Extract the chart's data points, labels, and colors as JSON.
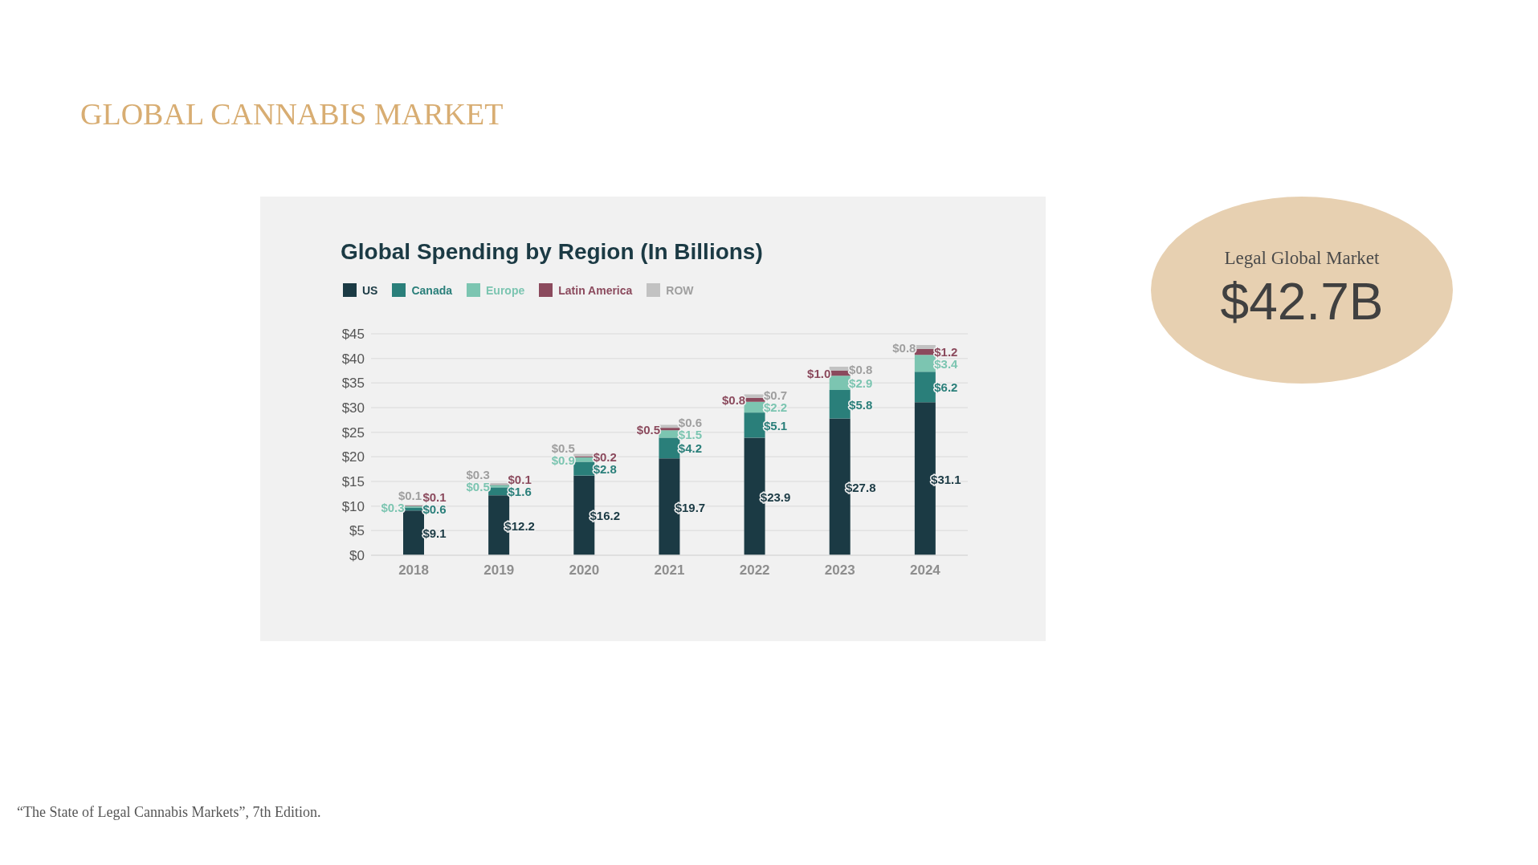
{
  "chart_data": {
    "type": "bar",
    "title": "GLOBAL CANNABIS MARKET",
    "subtitle": "Global Spending by Region (In Billions)",
    "categories": [
      "2018",
      "2019",
      "2020",
      "2021",
      "2022",
      "2023",
      "2024"
    ],
    "stacked": true,
    "series": [
      {
        "name": "US",
        "color": "#1b3a44",
        "values": [
          9.1,
          12.2,
          16.2,
          19.7,
          23.9,
          27.8,
          31.1
        ],
        "value_labels": [
          "$9.1",
          "$12.2",
          "$16.2",
          "$19.7",
          "$23.9",
          "$27.8",
          "$31.1"
        ]
      },
      {
        "name": "Canada",
        "color": "#2a7f7a",
        "values": [
          0.6,
          1.6,
          2.8,
          4.2,
          5.1,
          5.8,
          6.2
        ],
        "value_labels": [
          "$0.6",
          "$1.6",
          "$2.8",
          "$4.2",
          "$5.1",
          "$5.8",
          "$6.2"
        ]
      },
      {
        "name": "Europe",
        "color": "#7cc5b1",
        "values": [
          0.3,
          0.5,
          0.9,
          1.5,
          2.2,
          2.9,
          3.4
        ],
        "value_labels": [
          "$0.3",
          "$0.5",
          "$0.9",
          "$1.5",
          "$2.2",
          "$2.9",
          "$3.4"
        ]
      },
      {
        "name": "Latin America",
        "color": "#8b4a5d",
        "values": [
          0.1,
          0.1,
          0.2,
          0.5,
          0.8,
          1.0,
          1.2
        ],
        "value_labels": [
          "$0.1",
          "$0.1",
          "$0.2",
          "$0.5",
          "$0.8",
          "$1.0",
          "$1.2"
        ]
      },
      {
        "name": "ROW",
        "color": "#c2c2c2",
        "values": [
          0.1,
          0.3,
          0.5,
          0.6,
          0.7,
          0.8,
          0.8
        ],
        "value_labels": [
          "$0.1",
          "$0.3",
          "$0.5",
          "$0.6",
          "$0.7",
          "$0.8",
          "$0.8"
        ]
      }
    ],
    "ylim": [
      0,
      45
    ],
    "yticks": [
      {
        "value": 0,
        "label": "$0"
      },
      {
        "value": 5,
        "label": "$5"
      },
      {
        "value": 10,
        "label": "$10"
      },
      {
        "value": 15,
        "label": "$15"
      },
      {
        "value": 20,
        "label": "$20"
      },
      {
        "value": 25,
        "label": "$25"
      },
      {
        "value": 30,
        "label": "$30"
      },
      {
        "value": 35,
        "label": "$35"
      },
      {
        "value": 40,
        "label": "$40"
      },
      {
        "value": 45,
        "label": "$45"
      }
    ],
    "grid": "y",
    "legend": "top left",
    "annotations": [
      "Legal Global Market",
      "$42.7B",
      "“The State of Legal Cannabis Markets”, 7th Edition."
    ]
  }
}
